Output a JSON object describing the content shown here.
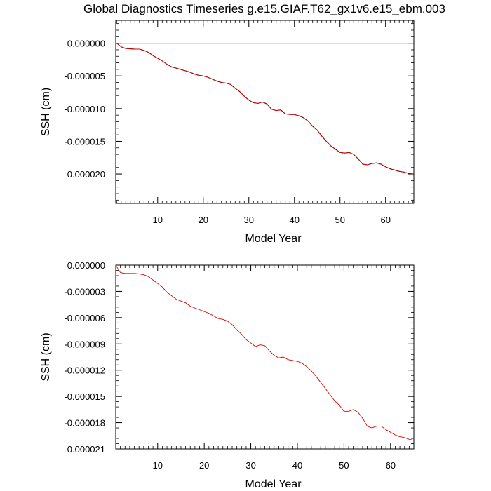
{
  "title": "Global Diagnostics Timeseries g.e15.GIAF.T62_gx1v6.e15_ebm.003",
  "colors": {
    "primary": "#000000",
    "secondary": "#dd0000",
    "axis": "#000000",
    "zero_line": "#000000"
  },
  "chart_data": [
    {
      "type": "line",
      "xlabel": "Model Year",
      "ylabel": "SSH (cm)",
      "xlim": [
        0.8,
        66.2
      ],
      "ylim": [
        -2.45e-05,
        3.5e-06
      ],
      "x_ticks": [
        10,
        20,
        30,
        40,
        50,
        60
      ],
      "x_tick_labels": [
        "10",
        "20",
        "30",
        "40",
        "50",
        "60"
      ],
      "y_ticks": [
        0,
        -5e-06,
        -1e-05,
        -1.5e-05,
        -2e-05
      ],
      "y_tick_labels": [
        "0.000000",
        "-0.000005",
        "-0.000010",
        "-0.000015",
        "-0.000020"
      ],
      "reference_line_y": 0,
      "series": [
        {
          "role": "monthly",
          "color": "#000000",
          "x": [
            1,
            2,
            3,
            4,
            5,
            6,
            7,
            8,
            9,
            10,
            11,
            12,
            13,
            14,
            15,
            16,
            17,
            18,
            19,
            20,
            21,
            22,
            23,
            24,
            25,
            26,
            27,
            28,
            29,
            30,
            31,
            32,
            33,
            34,
            35,
            36,
            37,
            38,
            39,
            40,
            41,
            42,
            43,
            44,
            45,
            46,
            47,
            48,
            49,
            50,
            51,
            52,
            53,
            54,
            55,
            56,
            57,
            58,
            59,
            60,
            61,
            62,
            63,
            64,
            65,
            66
          ],
          "values": [
            0.0,
            -5.5e-07,
            -8e-07,
            -8.5e-07,
            -9e-07,
            -9e-07,
            -1.1e-06,
            -1.4e-06,
            -1.9e-06,
            -2.3e-06,
            -2.7e-06,
            -3.2e-06,
            -3.6e-06,
            -3.8e-06,
            -4e-06,
            -4.2e-06,
            -4.4e-06,
            -4.7e-06,
            -4.9e-06,
            -5e-06,
            -5.2e-06,
            -5.5e-06,
            -5.8e-06,
            -6e-06,
            -6.1e-06,
            -6.3e-06,
            -6.9e-06,
            -7.4e-06,
            -8.1e-06,
            -8.7e-06,
            -9.1e-06,
            -9.2e-06,
            -9e-06,
            -9.3e-06,
            -1.01e-05,
            -1.03e-05,
            -1.02e-05,
            -1.08e-05,
            -1.09e-05,
            -1.09e-05,
            -1.11e-05,
            -1.14e-05,
            -1.19e-05,
            -1.27e-05,
            -1.33e-05,
            -1.42e-05,
            -1.5e-05,
            -1.57e-05,
            -1.62e-05,
            -1.67e-05,
            -1.68e-05,
            -1.67e-05,
            -1.7e-05,
            -1.77e-05,
            -1.85e-05,
            -1.86e-05,
            -1.84e-05,
            -1.83e-05,
            -1.85e-05,
            -1.89e-05,
            -1.92e-05,
            -1.94e-05,
            -1.96e-05,
            -1.97e-05,
            -1.99e-05,
            -2e-05
          ]
        },
        {
          "role": "annual mean",
          "color": "#dd0000",
          "x": [
            1,
            2,
            3,
            4,
            5,
            6,
            7,
            8,
            9,
            10,
            11,
            12,
            13,
            14,
            15,
            16,
            17,
            18,
            19,
            20,
            21,
            22,
            23,
            24,
            25,
            26,
            27,
            28,
            29,
            30,
            31,
            32,
            33,
            34,
            35,
            36,
            37,
            38,
            39,
            40,
            41,
            42,
            43,
            44,
            45,
            46,
            47,
            48,
            49,
            50,
            51,
            52,
            53,
            54,
            55,
            56,
            57,
            58,
            59,
            60,
            61,
            62,
            63,
            64,
            65,
            66
          ],
          "values": [
            0.0,
            -5.5e-07,
            -8e-07,
            -8.5e-07,
            -9e-07,
            -9e-07,
            -1.1e-06,
            -1.4e-06,
            -1.9e-06,
            -2.3e-06,
            -2.7e-06,
            -3.2e-06,
            -3.6e-06,
            -3.8e-06,
            -4e-06,
            -4.2e-06,
            -4.4e-06,
            -4.7e-06,
            -4.9e-06,
            -5e-06,
            -5.2e-06,
            -5.5e-06,
            -5.8e-06,
            -6e-06,
            -6.1e-06,
            -6.3e-06,
            -6.9e-06,
            -7.4e-06,
            -8.1e-06,
            -8.7e-06,
            -9.1e-06,
            -9.2e-06,
            -9e-06,
            -9.3e-06,
            -1.01e-05,
            -1.03e-05,
            -1.02e-05,
            -1.08e-05,
            -1.09e-05,
            -1.09e-05,
            -1.11e-05,
            -1.14e-05,
            -1.19e-05,
            -1.27e-05,
            -1.33e-05,
            -1.42e-05,
            -1.5e-05,
            -1.57e-05,
            -1.62e-05,
            -1.67e-05,
            -1.68e-05,
            -1.67e-05,
            -1.7e-05,
            -1.77e-05,
            -1.85e-05,
            -1.86e-05,
            -1.84e-05,
            -1.83e-05,
            -1.85e-05,
            -1.89e-05,
            -1.92e-05,
            -1.94e-05,
            -1.96e-05,
            -1.97e-05,
            -1.99e-05,
            -2e-05
          ]
        }
      ]
    },
    {
      "type": "line",
      "xlabel": "Model Year",
      "ylabel": "SSH (cm)",
      "xlim": [
        1,
        65
      ],
      "ylim": [
        -2.1e-05,
        0
      ],
      "x_ticks": [
        10,
        20,
        30,
        40,
        50,
        60
      ],
      "x_tick_labels": [
        "10",
        "20",
        "30",
        "40",
        "50",
        "60"
      ],
      "y_ticks": [
        0,
        -3e-06,
        -6e-06,
        -9e-06,
        -1.2e-05,
        -1.5e-05,
        -1.8e-05,
        -2.1e-05
      ],
      "y_tick_labels": [
        "0.000000",
        "-0.000003",
        "-0.000006",
        "-0.000009",
        "-0.000012",
        "-0.000015",
        "-0.000018",
        "-0.000021"
      ],
      "series": [
        {
          "role": "annual mean",
          "color": "#dd0000",
          "x": [
            1,
            2,
            3,
            4,
            5,
            6,
            7,
            8,
            9,
            10,
            11,
            12,
            13,
            14,
            15,
            16,
            17,
            18,
            19,
            20,
            21,
            22,
            23,
            24,
            25,
            26,
            27,
            28,
            29,
            30,
            31,
            32,
            33,
            34,
            35,
            36,
            37,
            38,
            39,
            40,
            41,
            42,
            43,
            44,
            45,
            46,
            47,
            48,
            49,
            50,
            51,
            52,
            53,
            54,
            55,
            56,
            57,
            58,
            59,
            60,
            61,
            62,
            63,
            64,
            65
          ],
          "values": [
            0.0,
            -8.5e-07,
            -9.5e-07,
            -9.5e-07,
            -9.5e-07,
            -1e-06,
            -1.1e-06,
            -1.3e-06,
            -1.7e-06,
            -2.1e-06,
            -2.5e-06,
            -3.1e-06,
            -3.5e-06,
            -3.9e-06,
            -4.1e-06,
            -4.3e-06,
            -4.7e-06,
            -4.9e-06,
            -5.1e-06,
            -5.3e-06,
            -5.5e-06,
            -5.8e-06,
            -6.1e-06,
            -6.2e-06,
            -6.4e-06,
            -6.8e-06,
            -7.4e-06,
            -7.9e-06,
            -8.5e-06,
            -8.9e-06,
            -9.3e-06,
            -9.1e-06,
            -9.2e-06,
            -9.8e-06,
            -1.03e-05,
            -1.06e-05,
            -1.05e-05,
            -1.08e-05,
            -1.09e-05,
            -1.1e-05,
            -1.12e-05,
            -1.16e-05,
            -1.21e-05,
            -1.27e-05,
            -1.34e-05,
            -1.41e-05,
            -1.48e-05,
            -1.55e-05,
            -1.6e-05,
            -1.67e-05,
            -1.67e-05,
            -1.65e-05,
            -1.68e-05,
            -1.75e-05,
            -1.84e-05,
            -1.86e-05,
            -1.84e-05,
            -1.84e-05,
            -1.88e-05,
            -1.91e-05,
            -1.94e-05,
            -1.96e-05,
            -1.97e-05,
            -1.99e-05,
            -2e-05
          ]
        }
      ]
    }
  ]
}
